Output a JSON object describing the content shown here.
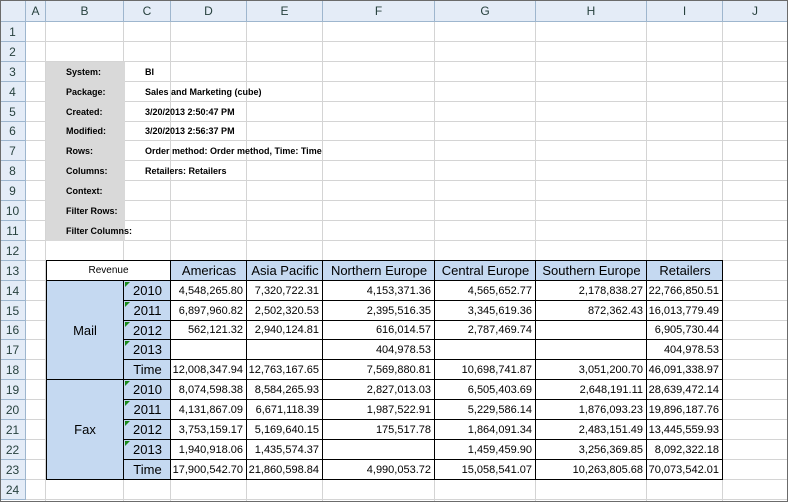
{
  "columns": [
    "A",
    "B",
    "C",
    "D",
    "E",
    "F",
    "G",
    "H",
    "I",
    "J"
  ],
  "rows": [
    "1",
    "2",
    "3",
    "4",
    "5",
    "6",
    "7",
    "8",
    "9",
    "10",
    "11",
    "12",
    "13",
    "14",
    "15",
    "16",
    "17",
    "18",
    "19",
    "20",
    "21",
    "22",
    "23",
    "24"
  ],
  "metadata": [
    {
      "label": "System:",
      "value": "BI"
    },
    {
      "label": "Package:",
      "value": "Sales and Marketing (cube)"
    },
    {
      "label": "Created:",
      "value": "3/20/2013 2:50:47 PM"
    },
    {
      "label": "Modified:",
      "value": "3/20/2013 2:56:37 PM"
    },
    {
      "label": "Rows:",
      "value": "Order method: Order method, Time: Time"
    },
    {
      "label": "Columns:",
      "value": "Retailers: Retailers"
    },
    {
      "label": "Context:",
      "value": ""
    },
    {
      "label": "Filter Rows:",
      "value": ""
    },
    {
      "label": "Filter Columns:",
      "value": ""
    }
  ],
  "crosstab": {
    "measure": "Revenue",
    "headers": [
      "Americas",
      "Asia Pacific",
      "Northern Europe",
      "Central Europe",
      "Southern Europe",
      "Retailers"
    ],
    "groups": [
      {
        "name": "Mail",
        "rows": [
          {
            "label": "2010",
            "values": [
              "4,548,265.80",
              "7,320,722.31",
              "4,153,371.36",
              "4,565,652.77",
              "2,178,838.27",
              "22,766,850.51"
            ]
          },
          {
            "label": "2011",
            "values": [
              "6,897,960.82",
              "2,502,320.53",
              "2,395,516.35",
              "3,345,619.36",
              "872,362.43",
              "16,013,779.49"
            ]
          },
          {
            "label": "2012",
            "values": [
              "562,121.32",
              "2,940,124.81",
              "616,014.57",
              "2,787,469.74",
              "",
              "6,905,730.44"
            ]
          },
          {
            "label": "2013",
            "values": [
              "",
              "",
              "404,978.53",
              "",
              "",
              "404,978.53"
            ]
          },
          {
            "label": "Time",
            "values": [
              "12,008,347.94",
              "12,763,167.65",
              "7,569,880.81",
              "10,698,741.87",
              "3,051,200.70",
              "46,091,338.97"
            ]
          }
        ]
      },
      {
        "name": "Fax",
        "rows": [
          {
            "label": "2010",
            "values": [
              "8,074,598.38",
              "8,584,265.93",
              "2,827,013.03",
              "6,505,403.69",
              "2,648,191.11",
              "28,639,472.14"
            ]
          },
          {
            "label": "2011",
            "values": [
              "4,131,867.09",
              "6,671,118.39",
              "1,987,522.91",
              "5,229,586.14",
              "1,876,093.23",
              "19,896,187.76"
            ]
          },
          {
            "label": "2012",
            "values": [
              "3,753,159.17",
              "5,169,640.15",
              "175,517.78",
              "1,864,091.34",
              "2,483,151.49",
              "13,445,559.93"
            ]
          },
          {
            "label": "2013",
            "values": [
              "1,940,918.06",
              "1,435,574.37",
              "",
              "1,459,459.90",
              "3,256,369.85",
              "8,092,322.18"
            ]
          },
          {
            "label": "Time",
            "values": [
              "17,900,542.70",
              "21,860,598.84",
              "4,990,053.72",
              "15,058,541.07",
              "10,263,805.68",
              "70,073,542.01"
            ]
          }
        ]
      }
    ]
  }
}
